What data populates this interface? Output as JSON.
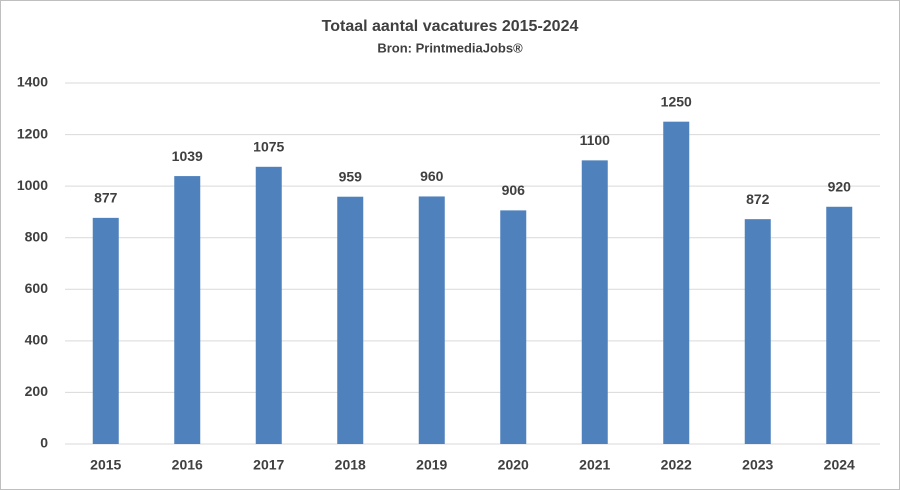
{
  "chart_data": {
    "type": "bar",
    "title": "Totaal aantal vacatures 2015-2024",
    "subtitle": "Bron: PrintmediaJobs®",
    "categories": [
      "2015",
      "2016",
      "2017",
      "2018",
      "2019",
      "2020",
      "2021",
      "2022",
      "2023",
      "2024"
    ],
    "values": [
      877,
      1039,
      1075,
      959,
      960,
      906,
      1100,
      1250,
      872,
      920
    ],
    "color": "#4f81bd",
    "ylim": [
      0,
      1400
    ],
    "yticks": [
      0,
      200,
      400,
      600,
      800,
      1000,
      1200,
      1400
    ],
    "grid": true
  }
}
